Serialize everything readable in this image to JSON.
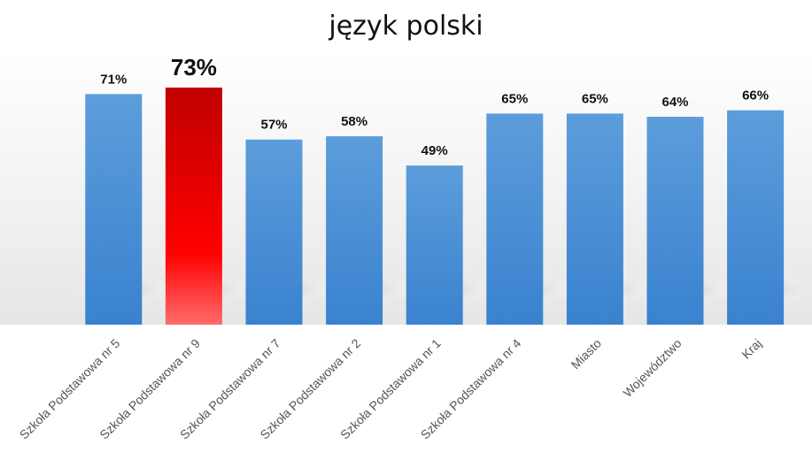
{
  "chart_data": {
    "type": "bar",
    "title": "język polski",
    "categories": [
      "Szkoła Podstawowa nr 5",
      "Szkoła Podstawowa nr 9",
      "Szkoła Podstawowa nr 7",
      "Szkoła Podstawowa nr 2",
      "Szkoła Podstawowa nr 1",
      "Szkoła Podstawowa nr 4",
      "Miasto",
      "Województwo",
      "Kraj"
    ],
    "values": [
      71,
      73,
      57,
      58,
      49,
      65,
      65,
      64,
      66
    ],
    "data_labels": [
      "71%",
      "73%",
      "57%",
      "58%",
      "49%",
      "65%",
      "65%",
      "64%",
      "66%"
    ],
    "highlight_index": 1,
    "colors": {
      "bar": "#4a90d9",
      "highlight": "#ff0000",
      "label": "#111111",
      "category": "#555555"
    },
    "ylim": [
      0,
      73
    ],
    "grid": false
  }
}
